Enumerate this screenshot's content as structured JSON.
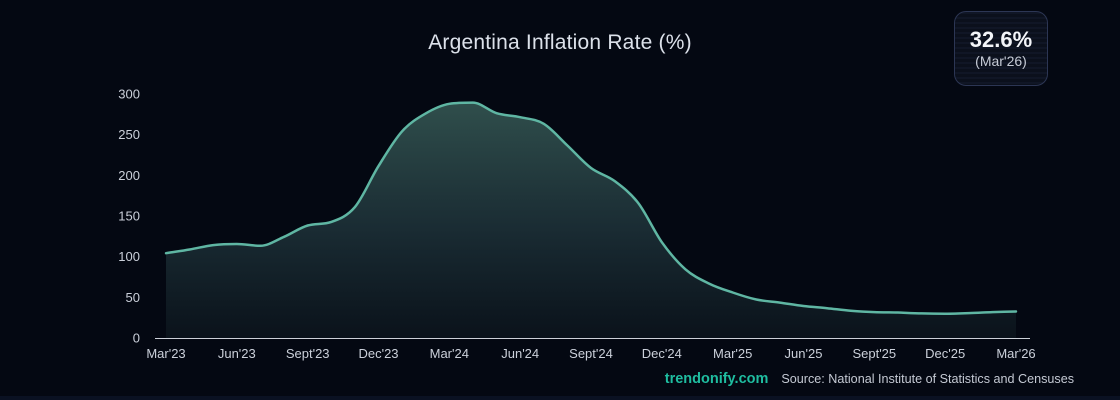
{
  "page": {
    "background": "#040812",
    "accent": "#1fbda0"
  },
  "header": {
    "title": "Argentina Inflation Rate (%)"
  },
  "badge": {
    "value": "32.6%",
    "period": "(Mar'26)"
  },
  "footer": {
    "brand": "trendonify.com",
    "source": "Source: National Institute of Statistics and Censuses"
  },
  "chart_data": {
    "type": "area",
    "title": "Argentina Inflation Rate (%)",
    "x": [
      "Mar'23",
      "Apr'23",
      "May'23",
      "Jun'23",
      "Jul'23",
      "Aug'23",
      "Sept'23",
      "Oct'23",
      "Nov'23",
      "Dec'23",
      "Jan'24",
      "Feb'24",
      "Mar'24",
      "Apr'24",
      "May'24",
      "Jun'24",
      "Jul'24",
      "Aug'24",
      "Sept'24",
      "Oct'24",
      "Nov'24",
      "Dec'24",
      "Jan'25",
      "Feb'25",
      "Mar'25",
      "Apr'25",
      "May'25",
      "Jun'25",
      "Jul'25",
      "Aug'25",
      "Sept'25",
      "Oct'25",
      "Nov'25",
      "Dec'25",
      "Jan'26",
      "Feb'26",
      "Mar'26"
    ],
    "values": [
      104.3,
      108.8,
      114.2,
      115.6,
      113.4,
      124.4,
      138.3,
      142.7,
      160.9,
      211.4,
      254.2,
      276.2,
      287.9,
      289.4,
      276.4,
      271.5,
      263.4,
      236.7,
      209.0,
      193.0,
      166.0,
      117.8,
      84.5,
      66.9,
      55.9,
      47.3,
      43.5,
      39.4,
      36.6,
      33.6,
      31.8,
      31.3,
      30.2,
      29.9,
      30.6,
      31.8,
      32.6
    ],
    "x_tick_labels": [
      "Mar'23",
      "Jun'23",
      "Sept'23",
      "Dec'23",
      "Mar'24",
      "Jun'24",
      "Sept'24",
      "Dec'24",
      "Mar'25",
      "Jun'25",
      "Sept'25",
      "Dec'25",
      "Mar'26"
    ],
    "x_tick_every": 3,
    "y_ticks": [
      0,
      50,
      100,
      150,
      200,
      250,
      300
    ],
    "ylim": [
      0,
      300
    ],
    "grid": false,
    "legend": null,
    "line_color": "#5fb6a3",
    "fill_top_color": "#335450",
    "fill_bottom_color": "#0c151d",
    "axis_line_color": "#e2e6ee",
    "last_point": {
      "label": "Mar'26",
      "value": 32.6
    }
  }
}
